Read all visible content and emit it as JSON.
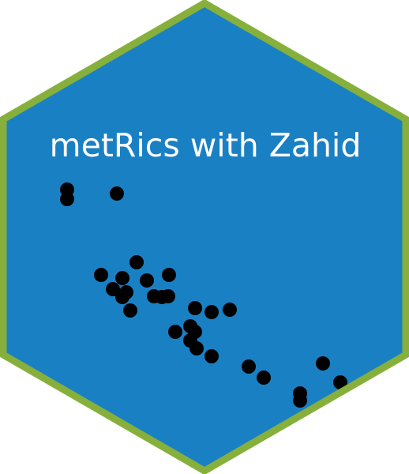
{
  "title": "metRics with Zahid",
  "colors": {
    "hex_fill": "#1a80c4",
    "hex_border": "#86b03b",
    "dot": "#000000",
    "title": "#ffffff"
  }
}
